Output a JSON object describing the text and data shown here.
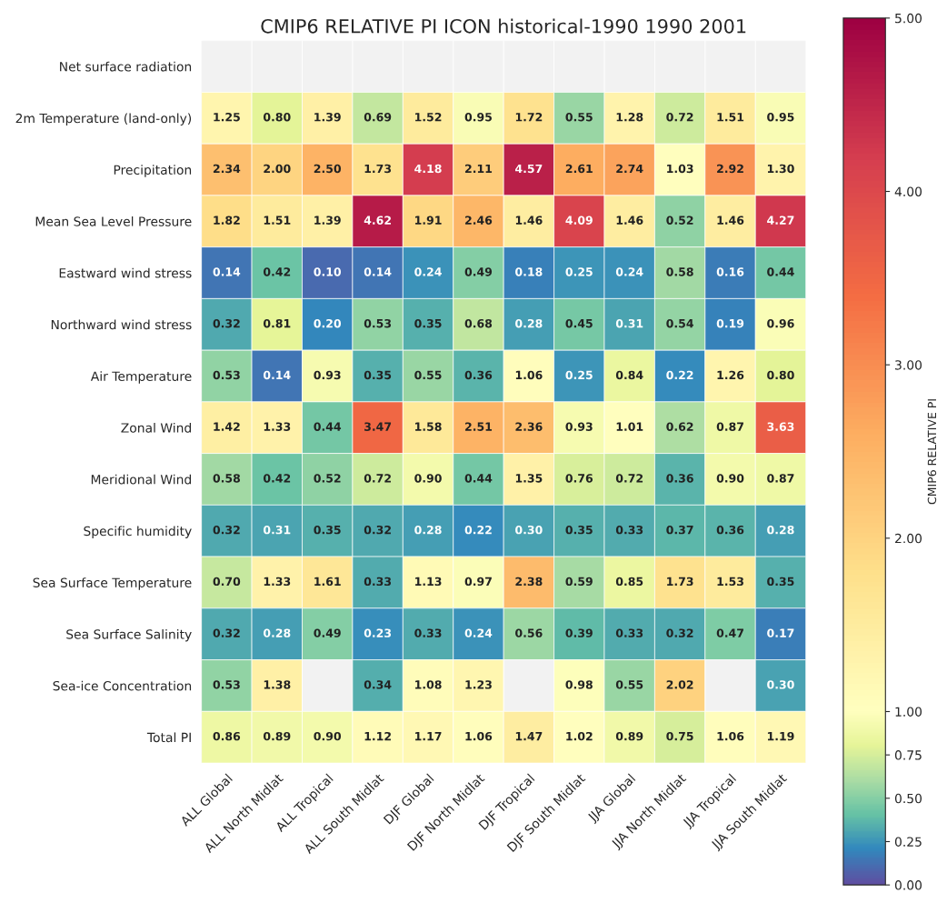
{
  "chart_data": {
    "type": "heatmap",
    "title": "CMIP6 RELATIVE PI ICON historical-1990 1990 2001",
    "clabel": "CMIP6 RELATIVE PI",
    "categories": [
      "ALL Global",
      "ALL North Midlat",
      "ALL Tropical",
      "ALL South Midlat",
      "DJF Global",
      "DJF North Midlat",
      "DJF Tropical",
      "DJF South Midlat",
      "JJA Global",
      "JJA North Midlat",
      "JJA Tropical",
      "JJA South Midlat"
    ],
    "y_categories": [
      "Net surface radiation",
      "2m Temperature (land-only)",
      "Precipitation",
      "Mean Sea Level Pressure",
      "Eastward wind stress",
      "Northward wind stress",
      "Air Temperature",
      "Zonal Wind",
      "Meridional Wind",
      "Specific humidity",
      "Sea Surface Temperature",
      "Sea Surface Salinity",
      "Sea-ice Concentration",
      "Total PI"
    ],
    "cells": [
      [
        null,
        null,
        null,
        null,
        null,
        null,
        null,
        null,
        null,
        null,
        null,
        null
      ],
      [
        1.25,
        0.8,
        1.39,
        0.69,
        1.52,
        0.95,
        1.72,
        0.55,
        1.28,
        0.72,
        1.51,
        0.95
      ],
      [
        2.34,
        2.0,
        2.5,
        1.73,
        4.18,
        2.11,
        4.57,
        2.61,
        2.74,
        1.03,
        2.92,
        1.3
      ],
      [
        1.82,
        1.51,
        1.39,
        4.62,
        1.91,
        2.46,
        1.46,
        4.09,
        1.46,
        0.52,
        1.46,
        4.27
      ],
      [
        0.14,
        0.42,
        0.1,
        0.14,
        0.24,
        0.49,
        0.18,
        0.25,
        0.24,
        0.58,
        0.16,
        0.44
      ],
      [
        0.32,
        0.81,
        0.2,
        0.53,
        0.35,
        0.68,
        0.28,
        0.45,
        0.31,
        0.54,
        0.19,
        0.96
      ],
      [
        0.53,
        0.14,
        0.93,
        0.35,
        0.55,
        0.36,
        1.06,
        0.25,
        0.84,
        0.22,
        1.26,
        0.8
      ],
      [
        1.42,
        1.33,
        0.44,
        3.47,
        1.58,
        2.51,
        2.36,
        0.93,
        1.01,
        0.62,
        0.87,
        3.63
      ],
      [
        0.58,
        0.42,
        0.52,
        0.72,
        0.9,
        0.44,
        1.35,
        0.76,
        0.72,
        0.36,
        0.9,
        0.87
      ],
      [
        0.32,
        0.31,
        0.35,
        0.32,
        0.28,
        0.22,
        0.3,
        0.35,
        0.33,
        0.37,
        0.36,
        0.28
      ],
      [
        0.7,
        1.33,
        1.61,
        0.33,
        1.13,
        0.97,
        2.38,
        0.59,
        0.85,
        1.73,
        1.53,
        0.35
      ],
      [
        0.32,
        0.28,
        0.49,
        0.23,
        0.33,
        0.24,
        0.56,
        0.39,
        0.33,
        0.32,
        0.47,
        0.17
      ],
      [
        0.53,
        1.38,
        null,
        0.34,
        1.08,
        1.23,
        null,
        0.98,
        0.55,
        2.02,
        null,
        0.3
      ],
      [
        0.86,
        0.89,
        0.9,
        1.12,
        1.17,
        1.06,
        1.47,
        1.02,
        0.89,
        0.75,
        1.06,
        1.19
      ]
    ],
    "cell_labels": [
      [
        null,
        null,
        null,
        null,
        null,
        null,
        null,
        null,
        null,
        null,
        null,
        null
      ],
      [
        "1.25",
        "0.80",
        "1.39",
        "0.69",
        "1.52",
        "0.95",
        "1.72",
        "0.55",
        "1.28",
        "0.72",
        "1.51",
        "0.95"
      ],
      [
        "2.34",
        "2.00",
        "2.50",
        "1.73",
        "4.18",
        "2.11",
        "4.57",
        "2.61",
        "2.74",
        "1.03",
        "2.92",
        "1.30"
      ],
      [
        "1.82",
        "1.51",
        "1.39",
        "4.62",
        "1.91",
        "2.46",
        "1.46",
        "4.09",
        "1.46",
        "0.52",
        "1.46",
        "4.27"
      ],
      [
        "0.14",
        "0.42",
        "0.10",
        "0.14",
        "0.24",
        "0.49",
        "0.18",
        "0.25",
        "0.24",
        "0.58",
        "0.16",
        "0.44"
      ],
      [
        "0.32",
        "0.81",
        "0.20",
        "0.53",
        "0.35",
        "0.68",
        "0.28",
        "0.45",
        "0.31",
        "0.54",
        "0.19",
        "0.96"
      ],
      [
        "0.53",
        "0.14",
        "0.93",
        "0.35",
        "0.55",
        "0.36",
        "1.06",
        "0.25",
        "0.84",
        "0.22",
        "1.26",
        "0.80"
      ],
      [
        "1.42",
        "1.33",
        "0.44",
        "3.47",
        "1.58",
        "2.51",
        "2.36",
        "0.93",
        "1.01",
        "0.62",
        "0.87",
        "3.63"
      ],
      [
        "0.58",
        "0.42",
        "0.52",
        "0.72",
        "0.90",
        "0.44",
        "1.35",
        "0.76",
        "0.72",
        "0.36",
        "0.90",
        "0.87"
      ],
      [
        "0.32",
        "0.31",
        "0.35",
        "0.32",
        "0.28",
        "0.22",
        "0.30",
        "0.35",
        "0.33",
        "0.37",
        "0.36",
        "0.28"
      ],
      [
        "0.70",
        "1.33",
        "1.61",
        "0.33",
        "1.13",
        "0.97",
        "2.38",
        "0.59",
        "0.85",
        "1.73",
        "1.53",
        "0.35"
      ],
      [
        "0.32",
        "0.28",
        "0.49",
        "0.23",
        "0.33",
        "0.24",
        "0.56",
        "0.39",
        "0.33",
        "0.32",
        "0.47",
        "0.17"
      ],
      [
        "0.53",
        "1.38",
        null,
        "0.34",
        "1.08",
        "1.23",
        null,
        "0.98",
        "0.55",
        "2.02",
        null,
        "0.30"
      ],
      [
        "0.86",
        "0.89",
        "0.90",
        "1.12",
        "1.17",
        "1.06",
        "1.47",
        "1.02",
        "0.89",
        "0.75",
        "1.06",
        "1.19"
      ]
    ],
    "clim": [
      0,
      5
    ],
    "cticks": [
      {
        "value": 0,
        "label": "0.00"
      },
      {
        "value": 0.25,
        "label": "0.25"
      },
      {
        "value": 0.5,
        "label": "0.50"
      },
      {
        "value": 0.75,
        "label": "0.75"
      },
      {
        "value": 1,
        "label": "1.00"
      },
      {
        "value": 2,
        "label": "2.00"
      },
      {
        "value": 3,
        "label": "3.00"
      },
      {
        "value": 4,
        "label": "4.00"
      },
      {
        "value": 5,
        "label": "5.00"
      }
    ]
  }
}
